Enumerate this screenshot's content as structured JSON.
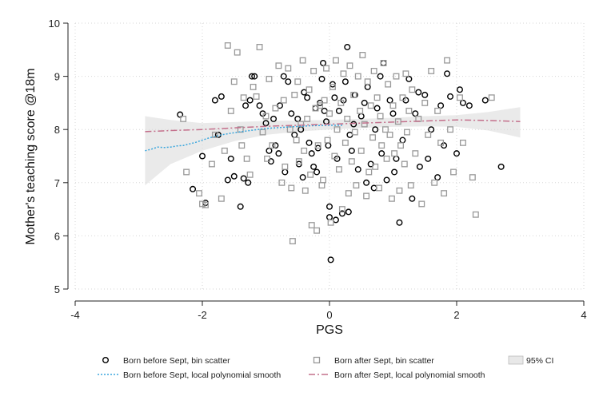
{
  "chart_data": {
    "type": "scatter",
    "title": "",
    "xlabel": "PGS",
    "ylabel": "Mother's teaching score @18m",
    "xlim": [
      -4,
      4
    ],
    "ylim": [
      5,
      10
    ],
    "x_ticks": [
      -4,
      -2,
      0,
      2,
      4
    ],
    "y_ticks": [
      5,
      6,
      7,
      8,
      9,
      10
    ],
    "grid": true,
    "legend_position": "bottom",
    "colors": {
      "before_marker": "#000000",
      "after_marker": "#999999",
      "before_line": "#3aa6dd",
      "after_line": "#c4708c",
      "ci_fill": "#d9d9d9"
    },
    "legend": [
      {
        "label": "Born before Sept, bin scatter",
        "kind": "circle"
      },
      {
        "label": "Born after Sept, bin scatter",
        "kind": "square"
      },
      {
        "label": "95% CI",
        "kind": "ci"
      },
      {
        "label": "Born before Sept, local polynomial smooth",
        "kind": "line-before"
      },
      {
        "label": "Born after Sept, local polynomial smooth",
        "kind": "line-after"
      }
    ],
    "series": [
      {
        "name": "Born before Sept, bin scatter",
        "marker": "circle",
        "points": [
          [
            -2.35,
            8.28
          ],
          [
            -2.15,
            6.88
          ],
          [
            -2.0,
            7.5
          ],
          [
            -1.95,
            6.62
          ],
          [
            -1.8,
            8.55
          ],
          [
            -1.75,
            7.9
          ],
          [
            -1.7,
            8.62
          ],
          [
            -1.6,
            7.05
          ],
          [
            -1.55,
            7.45
          ],
          [
            -1.5,
            7.12
          ],
          [
            -1.4,
            6.55
          ],
          [
            -1.35,
            7.08
          ],
          [
            -1.32,
            8.45
          ],
          [
            -1.28,
            7.0
          ],
          [
            -1.25,
            8.55
          ],
          [
            -1.22,
            9.0
          ],
          [
            -1.18,
            9.0
          ],
          [
            -1.1,
            8.45
          ],
          [
            -1.05,
            8.3
          ],
          [
            -1.0,
            8.12
          ],
          [
            -0.95,
            7.6
          ],
          [
            -0.92,
            7.4
          ],
          [
            -0.88,
            8.2
          ],
          [
            -0.85,
            7.7
          ],
          [
            -0.8,
            7.55
          ],
          [
            -0.78,
            8.45
          ],
          [
            -0.72,
            9.0
          ],
          [
            -0.7,
            7.2
          ],
          [
            -0.65,
            8.9
          ],
          [
            -0.6,
            8.3
          ],
          [
            -0.55,
            7.9
          ],
          [
            -0.5,
            8.2
          ],
          [
            -0.48,
            7.35
          ],
          [
            -0.45,
            8.0
          ],
          [
            -0.42,
            7.1
          ],
          [
            -0.4,
            8.7
          ],
          [
            -0.35,
            8.6
          ],
          [
            -0.32,
            7.75
          ],
          [
            -0.28,
            7.55
          ],
          [
            -0.25,
            7.3
          ],
          [
            -0.22,
            8.4
          ],
          [
            -0.2,
            7.2
          ],
          [
            -0.18,
            7.65
          ],
          [
            -0.15,
            8.5
          ],
          [
            -0.12,
            8.95
          ],
          [
            -0.1,
            9.25
          ],
          [
            -0.08,
            8.35
          ],
          [
            -0.05,
            8.15
          ],
          [
            -0.02,
            7.7
          ],
          [
            0.0,
            6.55
          ],
          [
            0.0,
            6.35
          ],
          [
            0.02,
            5.55
          ],
          [
            0.05,
            8.85
          ],
          [
            0.08,
            8.6
          ],
          [
            0.1,
            6.3
          ],
          [
            0.12,
            7.45
          ],
          [
            0.15,
            8.35
          ],
          [
            0.2,
            6.42
          ],
          [
            0.22,
            8.55
          ],
          [
            0.25,
            8.9
          ],
          [
            0.28,
            9.55
          ],
          [
            0.3,
            6.45
          ],
          [
            0.32,
            7.9
          ],
          [
            0.35,
            7.6
          ],
          [
            0.38,
            8.1
          ],
          [
            0.4,
            8.65
          ],
          [
            0.45,
            7.25
          ],
          [
            0.5,
            8.25
          ],
          [
            0.55,
            8.5
          ],
          [
            0.58,
            7.0
          ],
          [
            0.6,
            8.8
          ],
          [
            0.65,
            7.35
          ],
          [
            0.7,
            6.9
          ],
          [
            0.72,
            8.0
          ],
          [
            0.75,
            8.4
          ],
          [
            0.8,
            9.0
          ],
          [
            0.82,
            7.55
          ],
          [
            0.85,
            9.25
          ],
          [
            0.9,
            7.05
          ],
          [
            0.95,
            8.55
          ],
          [
            1.0,
            8.3
          ],
          [
            1.02,
            7.2
          ],
          [
            1.05,
            7.45
          ],
          [
            1.1,
            6.25
          ],
          [
            1.15,
            7.8
          ],
          [
            1.2,
            8.55
          ],
          [
            1.25,
            8.95
          ],
          [
            1.3,
            6.7
          ],
          [
            1.35,
            8.3
          ],
          [
            1.4,
            8.7
          ],
          [
            1.42,
            7.3
          ],
          [
            1.5,
            8.65
          ],
          [
            1.55,
            7.45
          ],
          [
            1.6,
            8.0
          ],
          [
            1.7,
            7.1
          ],
          [
            1.75,
            8.45
          ],
          [
            1.8,
            7.7
          ],
          [
            1.85,
            9.05
          ],
          [
            1.9,
            8.62
          ],
          [
            2.0,
            7.55
          ],
          [
            2.05,
            8.75
          ],
          [
            2.1,
            8.5
          ],
          [
            2.2,
            8.45
          ],
          [
            2.45,
            8.55
          ],
          [
            2.7,
            7.3
          ]
        ]
      },
      {
        "name": "Born after Sept, bin scatter",
        "marker": "square",
        "points": [
          [
            -2.3,
            8.2
          ],
          [
            -2.25,
            7.2
          ],
          [
            -2.05,
            6.8
          ],
          [
            -2.0,
            6.6
          ],
          [
            -1.95,
            6.58
          ],
          [
            -1.85,
            7.35
          ],
          [
            -1.8,
            7.9
          ],
          [
            -1.7,
            6.7
          ],
          [
            -1.65,
            7.6
          ],
          [
            -1.6,
            9.58
          ],
          [
            -1.55,
            8.35
          ],
          [
            -1.5,
            8.9
          ],
          [
            -1.45,
            9.45
          ],
          [
            -1.4,
            8.0
          ],
          [
            -1.38,
            7.7
          ],
          [
            -1.35,
            8.6
          ],
          [
            -1.3,
            7.45
          ],
          [
            -1.25,
            7.15
          ],
          [
            -1.2,
            8.8
          ],
          [
            -1.15,
            8.62
          ],
          [
            -1.1,
            9.55
          ],
          [
            -1.05,
            7.95
          ],
          [
            -1.0,
            8.25
          ],
          [
            -0.98,
            7.45
          ],
          [
            -0.95,
            8.95
          ],
          [
            -0.9,
            7.7
          ],
          [
            -0.85,
            8.4
          ],
          [
            -0.8,
            9.2
          ],
          [
            -0.75,
            7.0
          ],
          [
            -0.72,
            8.55
          ],
          [
            -0.7,
            7.3
          ],
          [
            -0.65,
            9.15
          ],
          [
            -0.62,
            8.0
          ],
          [
            -0.6,
            6.9
          ],
          [
            -0.58,
            5.9
          ],
          [
            -0.55,
            8.65
          ],
          [
            -0.52,
            7.8
          ],
          [
            -0.5,
            8.9
          ],
          [
            -0.48,
            7.4
          ],
          [
            -0.45,
            8.1
          ],
          [
            -0.42,
            9.3
          ],
          [
            -0.4,
            7.6
          ],
          [
            -0.38,
            6.85
          ],
          [
            -0.35,
            8.2
          ],
          [
            -0.32,
            8.75
          ],
          [
            -0.3,
            7.15
          ],
          [
            -0.28,
            6.2
          ],
          [
            -0.25,
            9.1
          ],
          [
            -0.22,
            8.4
          ],
          [
            -0.2,
            6.1
          ],
          [
            -0.18,
            7.7
          ],
          [
            -0.15,
            8.45
          ],
          [
            -0.12,
            6.95
          ],
          [
            -0.1,
            7.05
          ],
          [
            -0.08,
            8.55
          ],
          [
            -0.05,
            9.15
          ],
          [
            -0.03,
            7.8
          ],
          [
            0.0,
            8.3
          ],
          [
            0.02,
            6.25
          ],
          [
            0.05,
            8.8
          ],
          [
            0.08,
            7.5
          ],
          [
            0.1,
            9.3
          ],
          [
            0.12,
            8.0
          ],
          [
            0.15,
            7.25
          ],
          [
            0.18,
            8.5
          ],
          [
            0.2,
            6.5
          ],
          [
            0.22,
            9.05
          ],
          [
            0.25,
            7.75
          ],
          [
            0.28,
            8.2
          ],
          [
            0.3,
            6.8
          ],
          [
            0.32,
            9.2
          ],
          [
            0.35,
            7.4
          ],
          [
            0.38,
            8.65
          ],
          [
            0.4,
            7.95
          ],
          [
            0.42,
            6.95
          ],
          [
            0.45,
            9.0
          ],
          [
            0.48,
            8.35
          ],
          [
            0.5,
            7.6
          ],
          [
            0.52,
            9.4
          ],
          [
            0.55,
            8.1
          ],
          [
            0.58,
            6.75
          ],
          [
            0.6,
            8.9
          ],
          [
            0.62,
            7.2
          ],
          [
            0.65,
            8.45
          ],
          [
            0.68,
            7.85
          ],
          [
            0.7,
            9.1
          ],
          [
            0.72,
            7.3
          ],
          [
            0.75,
            8.6
          ],
          [
            0.78,
            6.9
          ],
          [
            0.8,
            8.25
          ],
          [
            0.82,
            7.7
          ],
          [
            0.85,
            9.25
          ],
          [
            0.88,
            8.0
          ],
          [
            0.9,
            7.45
          ],
          [
            0.92,
            8.85
          ],
          [
            0.95,
            7.9
          ],
          [
            0.98,
            6.7
          ],
          [
            1.0,
            8.45
          ],
          [
            1.02,
            7.55
          ],
          [
            1.05,
            9.0
          ],
          [
            1.08,
            8.15
          ],
          [
            1.1,
            6.85
          ],
          [
            1.12,
            7.7
          ],
          [
            1.15,
            8.6
          ],
          [
            1.18,
            7.35
          ],
          [
            1.2,
            9.05
          ],
          [
            1.22,
            7.95
          ],
          [
            1.25,
            8.35
          ],
          [
            1.28,
            6.95
          ],
          [
            1.3,
            8.75
          ],
          [
            1.35,
            7.55
          ],
          [
            1.4,
            8.2
          ],
          [
            1.45,
            6.6
          ],
          [
            1.5,
            8.5
          ],
          [
            1.55,
            7.9
          ],
          [
            1.6,
            9.1
          ],
          [
            1.65,
            7.0
          ],
          [
            1.7,
            8.35
          ],
          [
            1.75,
            7.75
          ],
          [
            1.8,
            6.8
          ],
          [
            1.85,
            9.3
          ],
          [
            1.9,
            8.0
          ],
          [
            1.95,
            7.2
          ],
          [
            2.05,
            8.6
          ],
          [
            2.1,
            7.75
          ],
          [
            2.25,
            7.1
          ],
          [
            2.3,
            6.4
          ],
          [
            2.55,
            8.6
          ]
        ]
      },
      {
        "name": "Born before Sept, local polynomial smooth",
        "type": "line",
        "x": [
          -2.9,
          -2.8,
          -2.7,
          -2.6,
          -2.5,
          -2.4,
          -2.3,
          -2.2,
          -2.1,
          -2.0,
          -1.9,
          -1.8,
          -1.7,
          -1.5,
          -1.2,
          -1.0,
          -0.6,
          -0.3,
          0.0,
          0.2
        ],
        "y": [
          7.6,
          7.63,
          7.67,
          7.66,
          7.67,
          7.69,
          7.7,
          7.73,
          7.76,
          7.8,
          7.84,
          7.87,
          7.9,
          7.94,
          7.99,
          8.02,
          8.05,
          8.07,
          8.08,
          8.08
        ]
      },
      {
        "name": "Born after Sept, local polynomial smooth",
        "type": "line",
        "x": [
          -2.9,
          -2.5,
          -2.0,
          -1.5,
          -1.0,
          -0.5,
          0.0,
          0.5,
          1.0,
          1.5,
          2.0,
          2.5,
          3.0
        ],
        "y": [
          7.96,
          7.98,
          8.0,
          8.03,
          8.06,
          8.08,
          8.1,
          8.12,
          8.14,
          8.16,
          8.18,
          8.17,
          8.15
        ]
      }
    ],
    "ci_band": {
      "x": [
        -2.9,
        -2.5,
        -2.0,
        -1.5,
        -1.0,
        -0.5,
        0.0,
        0.5,
        1.0,
        1.5,
        2.0,
        2.5,
        3.0
      ],
      "upper": [
        8.25,
        8.18,
        8.12,
        8.14,
        8.16,
        8.17,
        8.18,
        8.2,
        8.22,
        8.25,
        8.27,
        8.33,
        8.42
      ],
      "lower": [
        6.95,
        7.35,
        7.6,
        7.78,
        7.9,
        7.96,
        8.0,
        8.03,
        8.05,
        8.06,
        8.05,
        7.98,
        7.85
      ]
    }
  }
}
